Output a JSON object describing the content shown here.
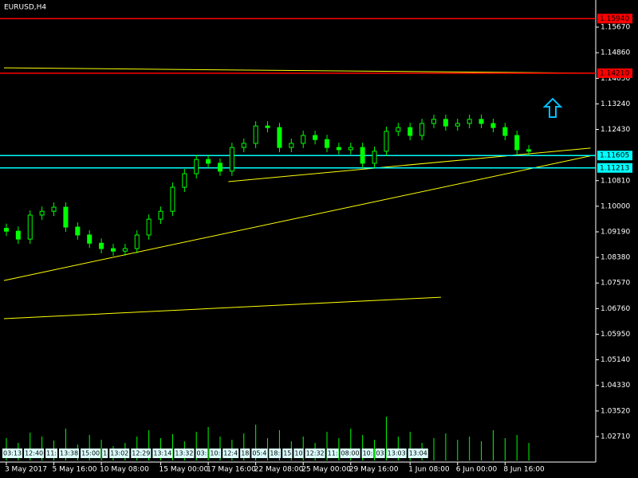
{
  "chart_data": {
    "type": "candlestick",
    "title": "EURUSD,H4",
    "color": "#00ff00",
    "candles": {
      "open": [
        1.093,
        1.0921,
        1.0896,
        1.0972,
        1.0984,
        1.0997,
        1.0934,
        1.0909,
        1.0883,
        1.0866,
        1.0858,
        1.0866,
        1.0909,
        1.0959,
        1.0984,
        1.106,
        1.1103,
        1.1148,
        1.1136,
        1.1111,
        1.1186,
        1.1199,
        1.1254,
        1.1249,
        1.1186,
        1.1199,
        1.1224,
        1.1211,
        1.1186,
        1.1179,
        1.1186,
        1.1136,
        1.1174,
        1.1237,
        1.1249,
        1.1224,
        1.1262,
        1.1275,
        1.1254,
        1.1262,
        1.1275,
        1.1262,
        1.1249,
        1.1224,
        1.1179
      ],
      "high": [
        1.0945,
        1.0936,
        1.0987,
        1.0999,
        1.1012,
        1.1012,
        1.0949,
        1.0924,
        1.0898,
        1.0881,
        1.0881,
        1.0924,
        1.0974,
        1.0999,
        1.1075,
        1.1118,
        1.1163,
        1.1163,
        1.1151,
        1.1201,
        1.1214,
        1.1269,
        1.1269,
        1.1264,
        1.1214,
        1.1239,
        1.1239,
        1.1226,
        1.1201,
        1.1201,
        1.1201,
        1.1189,
        1.1252,
        1.1264,
        1.1264,
        1.1277,
        1.129,
        1.129,
        1.1277,
        1.129,
        1.129,
        1.1277,
        1.1264,
        1.1239,
        1.1194
      ],
      "low": [
        1.0906,
        1.0881,
        1.0881,
        1.0957,
        1.0969,
        1.0919,
        1.0894,
        1.0868,
        1.0851,
        1.0843,
        1.0843,
        1.0851,
        1.0894,
        1.0944,
        1.0969,
        1.1045,
        1.1088,
        1.1121,
        1.1096,
        1.1096,
        1.1171,
        1.1184,
        1.1234,
        1.1171,
        1.1171,
        1.1184,
        1.1196,
        1.1171,
        1.1164,
        1.1164,
        1.1121,
        1.1121,
        1.1159,
        1.1222,
        1.1209,
        1.1209,
        1.1247,
        1.1239,
        1.1239,
        1.1247,
        1.1247,
        1.1234,
        1.1209,
        1.1164,
        1.1159
      ],
      "close": [
        1.0921,
        1.0896,
        1.0972,
        1.0984,
        1.0997,
        1.0934,
        1.0909,
        1.0883,
        1.0866,
        1.0858,
        1.0866,
        1.0909,
        1.0959,
        1.0984,
        1.106,
        1.1103,
        1.1148,
        1.1136,
        1.1111,
        1.1186,
        1.1199,
        1.1254,
        1.1249,
        1.1186,
        1.1199,
        1.1224,
        1.1211,
        1.1186,
        1.1179,
        1.1186,
        1.1136,
        1.1174,
        1.1237,
        1.1249,
        1.1224,
        1.1262,
        1.1275,
        1.1254,
        1.1262,
        1.1275,
        1.1262,
        1.1249,
        1.1224,
        1.1179,
        1.1174
      ]
    },
    "volume": [
      28,
      22,
      35,
      30,
      25,
      40,
      20,
      32,
      26,
      18,
      22,
      30,
      38,
      28,
      33,
      24,
      36,
      42,
      30,
      26,
      34,
      45,
      28,
      38,
      24,
      30,
      22,
      36,
      28,
      40,
      32,
      26,
      55,
      30,
      36,
      22,
      28,
      34,
      26,
      30,
      24,
      38,
      28,
      32,
      22
    ],
    "xlim": [
      -0.2,
      49.5
    ],
    "xticks": [
      {
        "value": 0,
        "label": "3 May 2017"
      },
      {
        "value": 4,
        "label": "5 May 16:00"
      },
      {
        "value": 8,
        "label": "10 May 08:00"
      },
      {
        "value": 13,
        "label": "15 May 00:00"
      },
      {
        "value": 17,
        "label": "17 May 16:00"
      },
      {
        "value": 21,
        "label": "22 May 08:00"
      },
      {
        "value": 25,
        "label": "25 May 00:00"
      },
      {
        "value": 29,
        "label": "29 May 16:00"
      },
      {
        "value": 34,
        "label": "1 Jun 08:00"
      },
      {
        "value": 38,
        "label": "6 Jun 00:00"
      },
      {
        "value": 42,
        "label": "8 Jun 16:00"
      }
    ],
    "ylim": [
      1.01953,
      1.16528
    ],
    "yticks": [
      {
        "value": 1.1567,
        "label": "1.15670"
      },
      {
        "value": 1.1486,
        "label": "1.14860"
      },
      {
        "value": 1.1405,
        "label": "1.14050"
      },
      {
        "value": 1.1324,
        "label": "1.13240"
      },
      {
        "value": 1.1243,
        "label": "1.12430"
      },
      {
        "value": 1.1081,
        "label": "1.10810"
      },
      {
        "value": 1.1,
        "label": "1.10000"
      },
      {
        "value": 1.0919,
        "label": "1.09190"
      },
      {
        "value": 1.0838,
        "label": "1.08380"
      },
      {
        "value": 1.0757,
        "label": "1.07570"
      },
      {
        "value": 1.0676,
        "label": "1.06760"
      },
      {
        "value": 1.0595,
        "label": "1.05950"
      },
      {
        "value": 1.0514,
        "label": "1.05140"
      },
      {
        "value": 1.0433,
        "label": "1.04330"
      },
      {
        "value": 1.0352,
        "label": "1.03520"
      },
      {
        "value": 1.0271,
        "label": "1.02710"
      }
    ],
    "grid": false,
    "levels": [
      {
        "value": 1.1594,
        "label": "1.15940",
        "color": "#ff0000"
      },
      {
        "value": 1.1421,
        "label": "1.14210",
        "color": "#ff0000"
      },
      {
        "value": 1.11605,
        "label": "1.11605",
        "color": "#00ffff"
      },
      {
        "value": 1.11213,
        "label": "1.11213",
        "color": "#00ffff"
      }
    ],
    "trendlines": [
      {
        "x": [
          -0.2,
          49.4
        ],
        "y": [
          1.0765,
          1.1161
        ],
        "color": "#ffff00"
      },
      {
        "x": [
          18.7,
          49.2
        ],
        "y": [
          1.1078,
          1.1184
        ],
        "color": "#ffff00"
      },
      {
        "x": [
          -0.2,
          36.6
        ],
        "y": [
          1.0644,
          1.0712
        ],
        "color": "#ffff00"
      },
      {
        "x": [
          -0.2,
          49.5
        ],
        "y": [
          1.1438,
          1.1421
        ],
        "color": "#ffff00"
      }
    ],
    "time_tags": [
      "03:13",
      "12:40",
      "11:",
      "13:38",
      "15:00",
      "1",
      "13:02",
      "12:29",
      "13:14",
      "13:32",
      "03:",
      "10:",
      "12:4",
      "18",
      "05:4",
      "18:",
      "15",
      "10",
      "12:32",
      "11:",
      "08:00",
      "10:",
      "03",
      "13:03",
      "13:04"
    ]
  }
}
